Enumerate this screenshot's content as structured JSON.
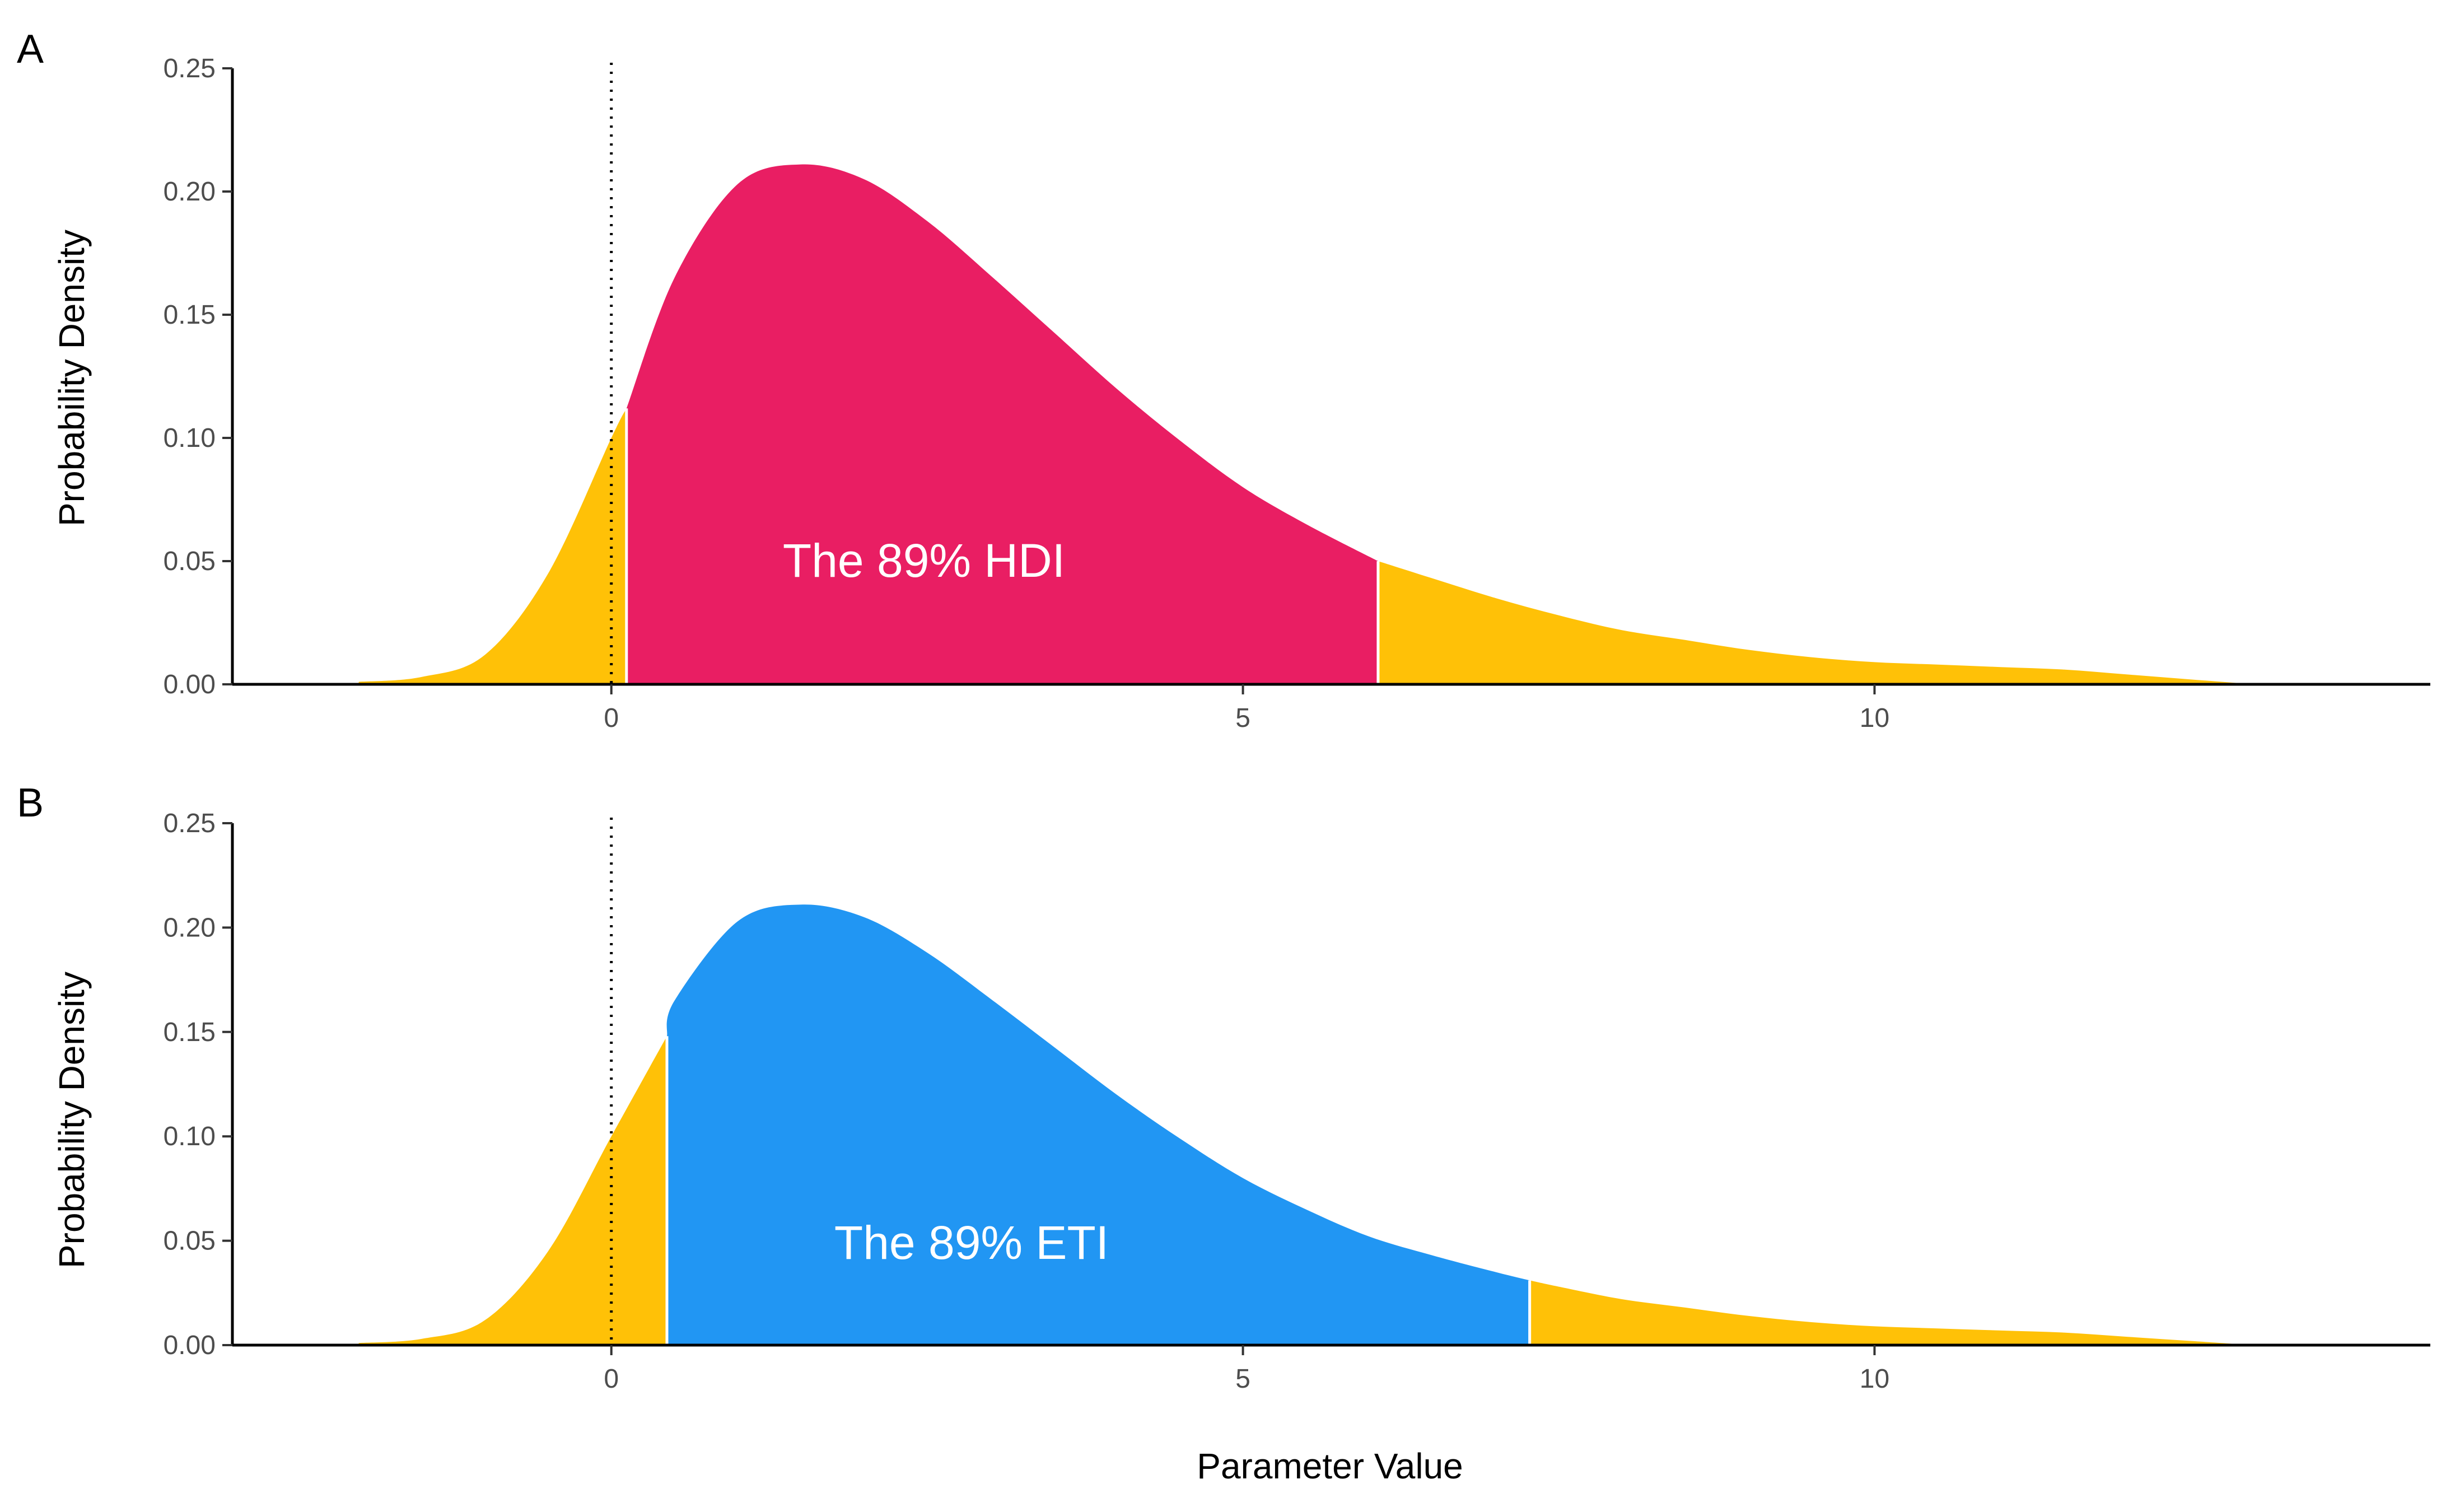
{
  "figure": {
    "xlabel": "Parameter Value",
    "colors": {
      "tail": "#FFC107",
      "hdi": "#E91E63",
      "eti": "#2196F3",
      "axis": "#000000",
      "tick_text": "#4d4d4d",
      "separator": "#ffffff"
    }
  },
  "chart_data": [
    {
      "type": "area",
      "panel_label": "A",
      "ylabel": "Probability Density",
      "annotation": "The 89% HDI",
      "xlim": [
        -3,
        14.4
      ],
      "ylim": [
        0,
        0.25
      ],
      "x_ticks": [
        0,
        5,
        10
      ],
      "y_ticks": [
        "0.00",
        "0.05",
        "0.10",
        "0.15",
        "0.20",
        "0.25"
      ],
      "reference_line_x": 0,
      "interval": [
        0.12,
        6.07
      ],
      "x": [
        -2,
        -1.5,
        -1,
        -0.5,
        0,
        0.12,
        0.5,
        1,
        1.5,
        2,
        2.5,
        3,
        3.5,
        4,
        4.5,
        5,
        5.5,
        6.07,
        6.5,
        7,
        7.5,
        8,
        8.5,
        9,
        9.5,
        10,
        10.5,
        11,
        11.5,
        12,
        12.5,
        13
      ],
      "density": [
        0.001,
        0.003,
        0.012,
        0.045,
        0.1,
        0.112,
        0.165,
        0.203,
        0.211,
        0.205,
        0.188,
        0.166,
        0.143,
        0.12,
        0.099,
        0.08,
        0.065,
        0.05,
        0.043,
        0.035,
        0.028,
        0.022,
        0.018,
        0.014,
        0.011,
        0.009,
        0.008,
        0.007,
        0.006,
        0.004,
        0.002,
        0
      ]
    },
    {
      "type": "area",
      "panel_label": "B",
      "ylabel": "Probability Density",
      "annotation": "The 89% ETI",
      "xlim": [
        -3,
        14.4
      ],
      "ylim": [
        0,
        0.25
      ],
      "x_ticks": [
        0,
        5,
        10
      ],
      "y_ticks": [
        "0.00",
        "0.05",
        "0.10",
        "0.15",
        "0.20",
        "0.25"
      ],
      "reference_line_x": 0,
      "interval": [
        0.44,
        7.27
      ],
      "x": [
        -2,
        -1.5,
        -1,
        -0.5,
        0,
        0.44,
        0.5,
        1,
        1.5,
        2,
        2.5,
        3,
        3.5,
        4,
        4.5,
        5,
        5.5,
        6,
        6.5,
        7,
        7.27,
        7.5,
        8,
        8.5,
        9,
        9.5,
        10,
        10.5,
        11,
        11.5,
        12,
        12.5,
        13
      ],
      "density": [
        0.001,
        0.003,
        0.012,
        0.045,
        0.1,
        0.148,
        0.165,
        0.203,
        0.211,
        0.205,
        0.188,
        0.166,
        0.143,
        0.12,
        0.099,
        0.08,
        0.065,
        0.052,
        0.043,
        0.035,
        0.031,
        0.028,
        0.022,
        0.018,
        0.014,
        0.011,
        0.009,
        0.008,
        0.007,
        0.006,
        0.004,
        0.002,
        0
      ]
    }
  ]
}
